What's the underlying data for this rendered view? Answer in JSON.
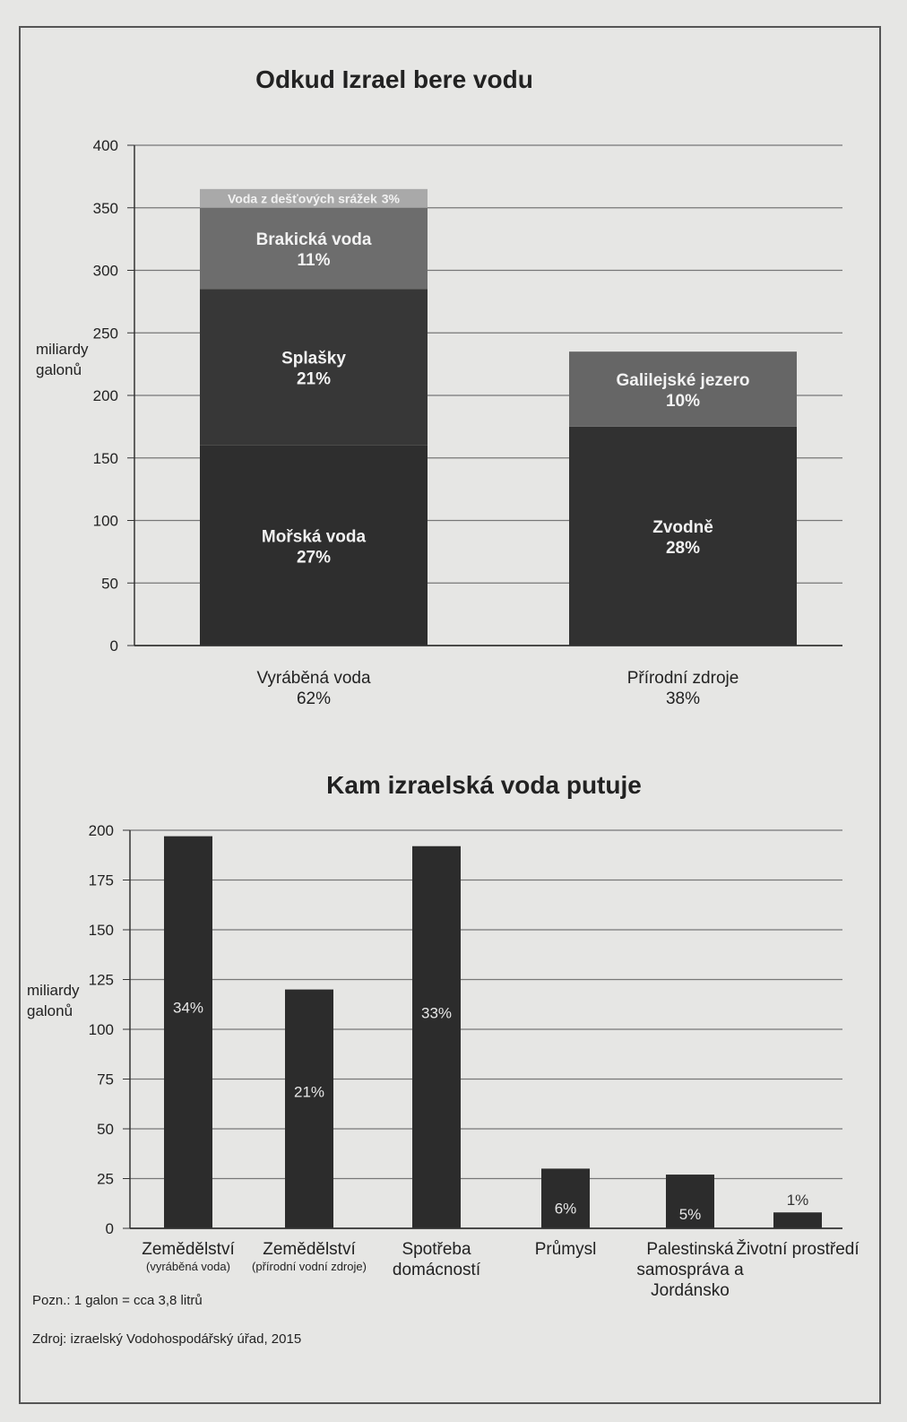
{
  "chart_data": [
    {
      "type": "bar",
      "stacked": true,
      "title": "Odkud Izrael bere vodu",
      "ylabel": [
        "miliardy",
        "galonů"
      ],
      "categories": [
        "Vyráběná voda",
        "Přírodní zdroje"
      ],
      "category_shares": [
        "62%",
        "38%"
      ],
      "ylim": [
        0,
        400
      ],
      "yticks": [
        0,
        50,
        100,
        150,
        200,
        250,
        300,
        350,
        400
      ],
      "grid": true,
      "series": [
        {
          "name": "Mořská voda",
          "share": "27%",
          "color": "#2e2e2e",
          "values": [
            160,
            null
          ]
        },
        {
          "name": "Splašky",
          "share": "21%",
          "color": "#373737",
          "values": [
            125,
            null
          ]
        },
        {
          "name": "Brakická voda",
          "share": "11%",
          "color": "#6d6d6d",
          "values": [
            65,
            null
          ]
        },
        {
          "name": "Voda z dešťových srážek",
          "share": "3%",
          "color": "#a9a9a9",
          "values": [
            15,
            null
          ]
        },
        {
          "name": "Zvodně",
          "share": "28%",
          "color": "#313131",
          "values": [
            null,
            175
          ]
        },
        {
          "name": "Galilejské jezero",
          "share": "10%",
          "color": "#666666",
          "values": [
            null,
            60
          ]
        }
      ]
    },
    {
      "type": "bar",
      "title": "Kam izraelská voda putuje",
      "ylabel": [
        "miliardy",
        "galonů"
      ],
      "categories": [
        "Zemědělství",
        "Zemědělství",
        "Spotřeba domácností",
        "Průmysl",
        "Palestinská samospráva a Jordánsko",
        "Životní prostředí"
      ],
      "category_notes": [
        "(vyráběná voda)",
        "(přírodní vodní zdroje)",
        null,
        null,
        null,
        null
      ],
      "values": [
        197,
        120,
        192,
        30,
        27,
        8
      ],
      "shares": [
        "34%",
        "21%",
        "33%",
        "6%",
        "5%",
        "1%"
      ],
      "color": "#2c2c2c",
      "ylim": [
        0,
        200
      ],
      "yticks": [
        0,
        25,
        50,
        75,
        100,
        125,
        150,
        175,
        200
      ],
      "grid": true
    }
  ],
  "notes": {
    "note": "Pozn.: 1 galon = cca 3,8 litrů",
    "source": "Zdroj: izraelský Vodohospodářský úřad, 2015"
  }
}
